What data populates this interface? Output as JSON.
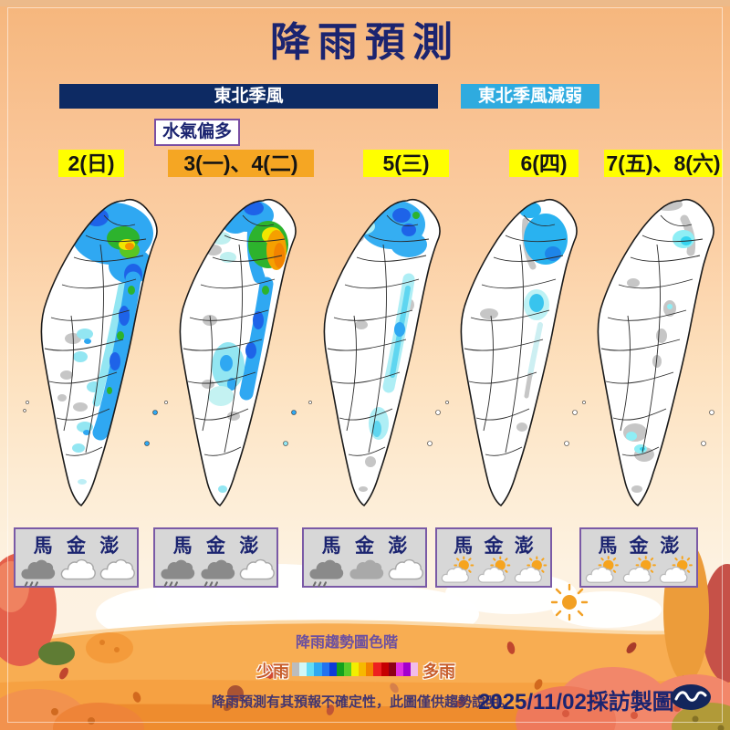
{
  "title": "降雨預測",
  "banners": {
    "monsoon": "東北季風",
    "weakening": "東北季風減弱",
    "moisture": "水氣偏多"
  },
  "columns": [
    {
      "date": "2(日)",
      "highlight": "#ffff00",
      "islands": [
        "馬",
        "金",
        "澎"
      ],
      "icons": [
        "rain",
        "cloud",
        "cloud"
      ]
    },
    {
      "date": "3(一)、4(二)",
      "highlight": "#f5a623",
      "islands": [
        "馬",
        "金",
        "澎"
      ],
      "icons": [
        "rain",
        "rain",
        "cloud"
      ]
    },
    {
      "date": "5(三)",
      "highlight": "#ffff00",
      "islands": [
        "馬",
        "金",
        "澎"
      ],
      "icons": [
        "rain",
        "graycloud",
        "cloud"
      ]
    },
    {
      "date": "6(四)",
      "highlight": "#ffff00",
      "islands": [
        "馬",
        "金",
        "澎"
      ],
      "icons": [
        "partly",
        "partly",
        "partly"
      ]
    },
    {
      "date": "7(五)、8(六)",
      "highlight": "#ffff00",
      "islands": [
        "馬",
        "金",
        "澎"
      ],
      "icons": [
        "partly",
        "partly",
        "partly"
      ]
    }
  ],
  "legend": {
    "title": "降雨趨勢圖色階",
    "less_label": "少雨",
    "more_label": "多雨",
    "colors": [
      "#bcbcbc",
      "#d2f8f8",
      "#63dcf5",
      "#2fa9f2",
      "#2273f0",
      "#0d3ad8",
      "#13a01e",
      "#59cb28",
      "#f3ee00",
      "#f7b800",
      "#f28200",
      "#ee1f1f",
      "#c60000",
      "#8e0016",
      "#e02fe0",
      "#a300cc",
      "#f2bce8"
    ]
  },
  "footer": {
    "disclaimer": "降雨預測有其預報不確定性，此圖僅供趨勢說明。",
    "credit": "2025/11/02採訪製圖"
  },
  "colors": {
    "accent_navy": "#0d2a63",
    "accent_cyan": "#2fabdf",
    "highlight_yellow": "#ffff00",
    "highlight_orange": "#f5a623",
    "box_border_purple": "#7a5aa6"
  }
}
